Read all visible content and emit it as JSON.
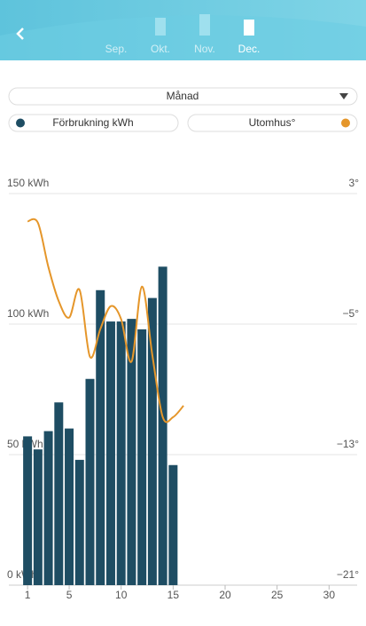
{
  "header": {
    "months": [
      "Sep.",
      "Okt.",
      "Nov.",
      "Dec."
    ]
  },
  "controls": {
    "period": "Månad"
  },
  "chart_data": {
    "type": "bar",
    "x": [
      1,
      2,
      3,
      4,
      5,
      6,
      7,
      8,
      9,
      10,
      11,
      12,
      13,
      14,
      15,
      16
    ],
    "series": [
      {
        "name": "Förbrukning kWh",
        "color": "#1e4d63",
        "values": [
          57,
          52,
          59,
          70,
          60,
          48,
          79,
          113,
          101,
          101,
          102,
          98,
          110,
          122,
          46,
          null
        ]
      },
      {
        "name": "Utomhus°",
        "color": "#e5962a",
        "type": "line",
        "axis": "y2",
        "values": [
          1.3,
          1.2,
          -1.5,
          -3.6,
          -4.6,
          -2.9,
          -7.0,
          -5.3,
          -3.9,
          -4.7,
          -7.3,
          -2.7,
          -6.9,
          -10.7,
          -10.7,
          -10.0
        ]
      }
    ],
    "xlim": [
      -0.8,
      32.7
    ],
    "xticks": [
      1,
      5,
      10,
      15,
      20,
      25,
      30
    ],
    "ylim": [
      0,
      150
    ],
    "yticks": [
      {
        "value": 0,
        "label": "0 kWh"
      },
      {
        "value": 50,
        "label": "50 kWh"
      },
      {
        "value": 100,
        "label": "100 kWh"
      },
      {
        "value": 150,
        "label": "150 kWh"
      }
    ],
    "y2lim": [
      -21,
      3
    ],
    "y2ticks": [
      {
        "value": -21,
        "label": "−21°"
      },
      {
        "value": -13,
        "label": "−13°"
      },
      {
        "value": -5,
        "label": "−5°"
      },
      {
        "value": 3,
        "label": "3°"
      }
    ],
    "grid": true
  }
}
